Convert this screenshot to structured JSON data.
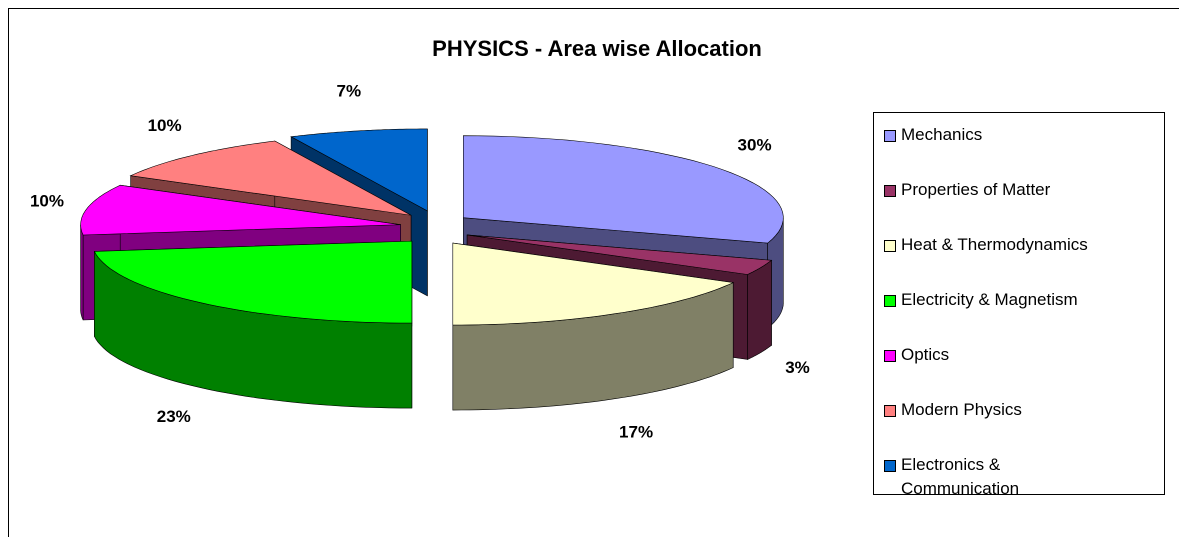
{
  "chart_data": {
    "type": "pie3d",
    "title": "PHYSICS - Area wise Allocation",
    "categories": [
      "Mechanics",
      "Properties of Matter",
      "Heat & Thermodynamics",
      "Electricity & Magnetism",
      "Optics",
      "Modern Physics",
      "Electronics & Communication"
    ],
    "values": [
      30,
      3,
      17,
      23,
      10,
      10,
      7
    ],
    "value_labels": [
      "30%",
      "3%",
      "17%",
      "23%",
      "10%",
      "10%",
      "7%"
    ],
    "colors": [
      "#9999ff",
      "#993366",
      "#ffffcc",
      "#00ff00",
      "#ff00ff",
      "#ff8080",
      "#0066cc"
    ],
    "legend": "right"
  }
}
